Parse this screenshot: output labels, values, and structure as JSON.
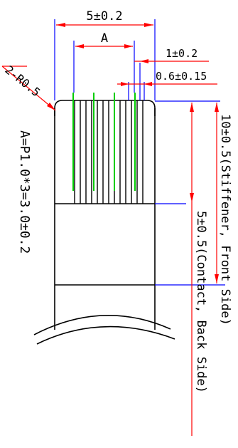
{
  "drawing": {
    "dim_overall_width": "5±0.2",
    "dim_pitch_label": "A",
    "dim_edge_offset": "1±0.2",
    "dim_lead_width": "0.6±0.15",
    "dim_radius": "2-R0.5",
    "dim_stiffener_length": "10±0.5(Stiffener, Front Side)",
    "dim_contact_length": "5±0.5(Contact, Back Side)",
    "formula_note": "A=P1.0*3=3.0±0.2"
  },
  "colors": {
    "outline": "#000000",
    "dimension_line": "#ff0000",
    "extension_line": "#0000ff",
    "contact_lead": "#00cc00"
  }
}
